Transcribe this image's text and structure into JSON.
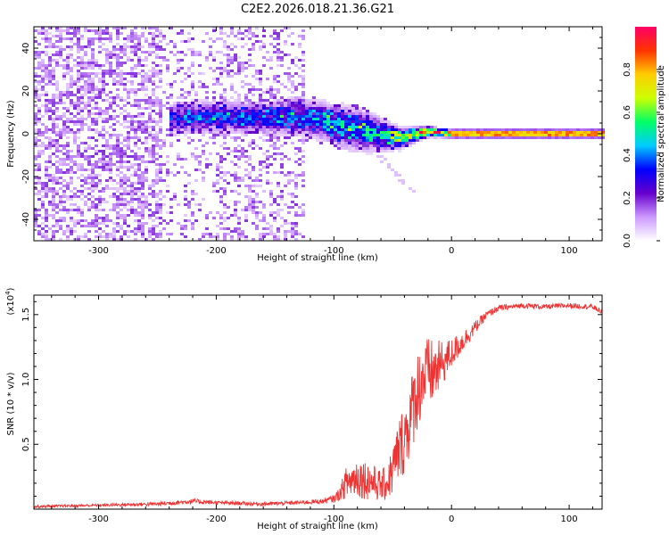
{
  "chart_data": [
    {
      "type": "heatmap",
      "title": "C2E2.2026.018.21.36.G21",
      "xlabel": "Height of straight line (km)",
      "ylabel": "Frequency (Hz)",
      "xlim": [
        -355,
        128
      ],
      "ylim": [
        -50,
        50
      ],
      "xticks": [
        -300,
        -200,
        -100,
        0,
        100
      ],
      "xtick_labels": [
        "-300",
        "-200",
        "-100",
        "0",
        "100"
      ],
      "yticks": [
        -40,
        -20,
        0,
        20,
        40
      ],
      "ytick_labels": [
        "-40",
        "-20",
        "0",
        "20",
        "40"
      ],
      "colorbar": {
        "label": "Normalized spectral amplitude",
        "range": [
          0,
          1
        ],
        "ticks": [
          0.0,
          0.2,
          0.4,
          0.6,
          0.8
        ],
        "tick_labels": [
          "0.0",
          "0.2",
          "0.4",
          "0.6",
          "0.8"
        ],
        "colors": [
          "#ffffff",
          "#cc99ff",
          "#6600cc",
          "#0000ff",
          "#00ccff",
          "#00ff66",
          "#ccff00",
          "#ffcc00",
          "#ff3300",
          "#ff0066"
        ]
      },
      "ridge": {
        "x": [
          -240,
          -200,
          -160,
          -130,
          -110,
          -90,
          -70,
          -55,
          -45,
          -35,
          -20,
          -10,
          0,
          20,
          60,
          100,
          128
        ],
        "freq": [
          7,
          8,
          7,
          8,
          6,
          3,
          1,
          -1,
          -2,
          -1,
          1,
          0.5,
          0,
          0,
          0,
          0,
          0
        ],
        "spread": [
          6,
          6,
          6,
          7,
          7,
          8,
          7,
          5,
          4,
          3,
          2,
          1.5,
          1.5,
          1.5,
          1.5,
          1.5,
          1.5
        ],
        "peak": [
          0.3,
          0.32,
          0.32,
          0.35,
          0.38,
          0.42,
          0.45,
          0.5,
          0.6,
          0.7,
          0.85,
          0.9,
          0.95,
          0.97,
          0.98,
          0.98,
          0.98
        ]
      },
      "noise_region": {
        "x_start": -355,
        "x_end": -125,
        "density": 1.0
      }
    },
    {
      "type": "line",
      "title": "",
      "xlabel": "Height of straight line (km)",
      "ylabel": "SNR (10 * v/v)",
      "y_multiplier": "(x10",
      "y_multiplier_exp": "4",
      "y_multiplier_close": ")",
      "xlim": [
        -355,
        128
      ],
      "ylim": [
        0,
        1.65
      ],
      "xticks": [
        -300,
        -200,
        -100,
        0,
        100
      ],
      "xtick_labels": [
        "-300",
        "-200",
        "-100",
        "0",
        "100"
      ],
      "yticks": [
        0.5,
        1.0,
        1.5
      ],
      "ytick_labels": [
        "0.5",
        "1.0",
        "1.5"
      ],
      "series": [
        {
          "name": "SNR",
          "color": "#ee3333",
          "x": [
            -355,
            -300,
            -250,
            -220,
            -200,
            -160,
            -130,
            -110,
            -100,
            -95,
            -90,
            -80,
            -70,
            -60,
            -55,
            -50,
            -45,
            -40,
            -35,
            -30,
            -25,
            -20,
            -15,
            -10,
            -5,
            0,
            5,
            10,
            20,
            30,
            40,
            50,
            60,
            80,
            100,
            120,
            128
          ],
          "y": [
            0.02,
            0.03,
            0.04,
            0.06,
            0.05,
            0.04,
            0.05,
            0.06,
            0.08,
            0.12,
            0.2,
            0.25,
            0.22,
            0.18,
            0.2,
            0.3,
            0.45,
            0.55,
            0.7,
            0.9,
            1.0,
            1.05,
            1.05,
            1.1,
            1.15,
            1.2,
            1.25,
            1.3,
            1.4,
            1.5,
            1.55,
            1.56,
            1.57,
            1.56,
            1.57,
            1.56,
            1.52
          ],
          "noise": [
            0.01,
            0.01,
            0.015,
            0.02,
            0.015,
            0.015,
            0.015,
            0.02,
            0.03,
            0.05,
            0.12,
            0.16,
            0.15,
            0.12,
            0.14,
            0.2,
            0.25,
            0.28,
            0.3,
            0.32,
            0.3,
            0.28,
            0.25,
            0.2,
            0.15,
            0.12,
            0.1,
            0.08,
            0.05,
            0.03,
            0.025,
            0.02,
            0.02,
            0.02,
            0.02,
            0.02,
            0.02
          ]
        }
      ]
    }
  ]
}
